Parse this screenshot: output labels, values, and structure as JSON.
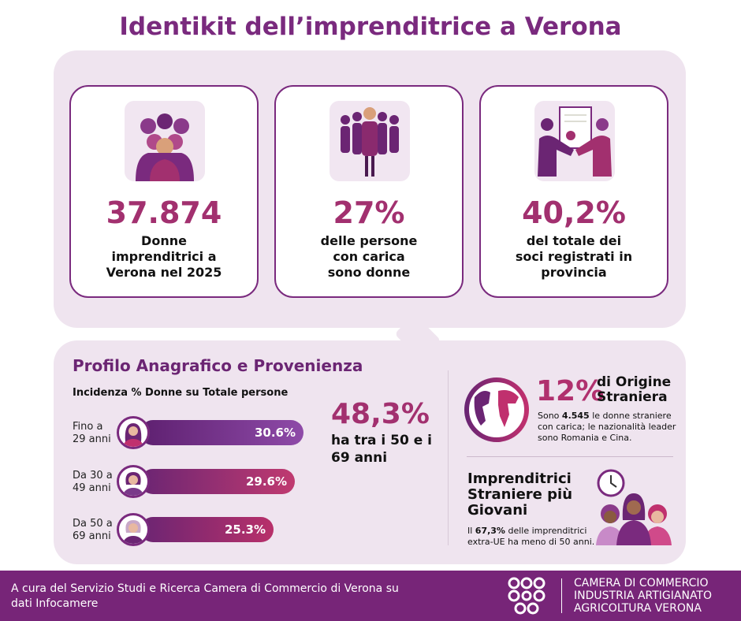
{
  "title": "Identikit dell’imprenditrice a Verona",
  "cards": [
    {
      "value": "37.874",
      "text": "Donne imprenditrici a Verona nel 2025",
      "icon": "group-of-women-icon"
    },
    {
      "value": "27%",
      "text": "delle persone con carica sono donne",
      "icon": "businesswoman-leader-icon"
    },
    {
      "value": "40,2%",
      "text": "del totale dei soci registrati in provincia",
      "icon": "handshake-contract-icon"
    }
  ],
  "profile": {
    "title": "Profilo Anagrafico e Provenienza",
    "subtitle": "Incidenza % Donne su Totale persone",
    "rows": [
      {
        "label": "Fino a 29 anni",
        "value": "30.6%",
        "pct": 30.6
      },
      {
        "label": "Da 30 a 49 anni",
        "value": "29.6%",
        "pct": 29.6
      },
      {
        "label": "Da 50 a 69 anni",
        "value": "25.3%",
        "pct": 25.3
      }
    ],
    "highlight_value": "48,3%",
    "highlight_text": "ha tra i 50 e i 69 anni"
  },
  "foreign": {
    "value": "12%",
    "label": "di Origine Straniera",
    "desc_pre": "Sono ",
    "desc_bold": "4.545",
    "desc_post": " le donne straniere con carica; le nazionalità leader sono Romania e Cina."
  },
  "young": {
    "title": "Imprenditrici Straniere più Giovani",
    "desc_pre": "Il ",
    "desc_bold": "67,3%",
    "desc_post": " delle imprenditrici extra-UE ha meno di 50 anni."
  },
  "footer": {
    "credit": "A cura del Servizio Studi e Ricerca Camera di Commercio di Verona su dati Infocamere",
    "org_line1": "CAMERA DI COMMERCIO",
    "org_line2": "INDUSTRIA ARTIGIANATO",
    "org_line3": "AGRICOLTURA VERONA"
  },
  "colors": {
    "purple": "#7a2a7e",
    "pink": "#a2306f",
    "footer": "#772578"
  }
}
